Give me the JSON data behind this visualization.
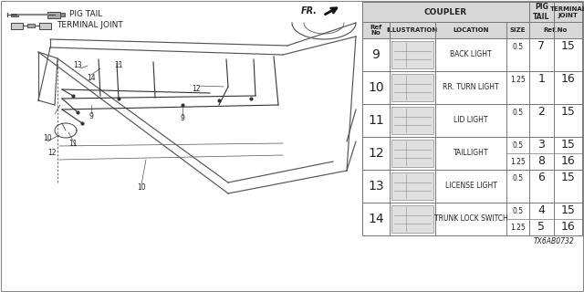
{
  "bg_color": "#ffffff",
  "line_color": "#555555",
  "text_color": "#222222",
  "legend": {
    "pigtail_label": "PIG TAIL",
    "terminal_label": "TERMINAL JOINT"
  },
  "fr_label": "FR.",
  "table_rows": [
    {
      "ref": "9",
      "location": "BACK LIGHT",
      "size_rows": [
        {
          "size": "0.5",
          "pig": "7",
          "term": "15"
        }
      ]
    },
    {
      "ref": "10",
      "location": "RR. TURN LIGHT",
      "size_rows": [
        {
          "size": "1.25",
          "pig": "1",
          "term": "16"
        }
      ]
    },
    {
      "ref": "11",
      "location": "LID LIGHT",
      "size_rows": [
        {
          "size": "0.5",
          "pig": "2",
          "term": "15"
        }
      ]
    },
    {
      "ref": "12",
      "location": "TAILLIGHT",
      "size_rows": [
        {
          "size": "0.5",
          "pig": "3",
          "term": "15"
        },
        {
          "size": "1.25",
          "pig": "8",
          "term": "16"
        }
      ]
    },
    {
      "ref": "13",
      "location": "LICENSE LIGHT",
      "size_rows": [
        {
          "size": "0.5",
          "pig": "6",
          "term": "15"
        }
      ]
    },
    {
      "ref": "14",
      "location": "TRUNK LOCK SWITCH",
      "size_rows": [
        {
          "size": "0.5",
          "pig": "4",
          "term": "15"
        },
        {
          "size": "1.25",
          "pig": "5",
          "term": "16"
        }
      ]
    }
  ],
  "diagram_code": "TX6AB0732",
  "car_part_labels": [
    [
      52,
      168,
      "10"
    ],
    [
      57,
      152,
      "12"
    ],
    [
      80,
      162,
      "11"
    ],
    [
      155,
      115,
      "10"
    ],
    [
      100,
      193,
      "9"
    ],
    [
      200,
      190,
      "9"
    ],
    [
      215,
      223,
      "12"
    ],
    [
      100,
      235,
      "14"
    ],
    [
      85,
      248,
      "13"
    ],
    [
      130,
      248,
      "11"
    ]
  ]
}
